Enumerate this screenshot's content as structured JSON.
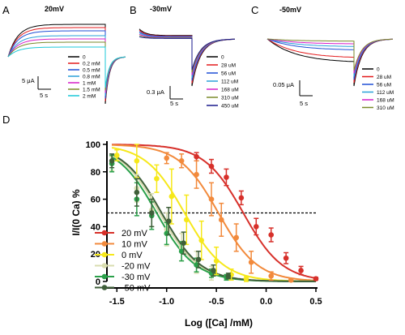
{
  "panels": [
    {
      "letter": "A",
      "title": "20mV",
      "scale": {
        "y_label": "5 μA",
        "x_label": "5 s"
      },
      "legend": [
        {
          "label": "0",
          "color": "#000000"
        },
        {
          "label": "0.2 mM",
          "color": "#e31a1c"
        },
        {
          "label": "0.5 mM",
          "color": "#1f4fd6"
        },
        {
          "label": "0.8 mM",
          "color": "#2aa0d8"
        },
        {
          "label": "1 mM",
          "color": "#d61fc8"
        },
        {
          "label": "1.5 mM",
          "color": "#7a8a2a"
        },
        {
          "label": "2 mM",
          "color": "#1cc8d8"
        }
      ]
    },
    {
      "letter": "B",
      "title": "-30mV",
      "scale": {
        "y_label": "0.3 μA",
        "x_label": "5 s"
      },
      "legend": [
        {
          "label": "0",
          "color": "#000000"
        },
        {
          "label": "28 uM",
          "color": "#e31a1c"
        },
        {
          "label": "56 uM",
          "color": "#1f4fd6"
        },
        {
          "label": "112 uM",
          "color": "#2aa0d8"
        },
        {
          "label": "168 uM",
          "color": "#d61fc8"
        },
        {
          "label": "310 uM",
          "color": "#7a8a2a"
        },
        {
          "label": "450 uM",
          "color": "#1a1a8c"
        }
      ]
    },
    {
      "letter": "C",
      "title": "-50mV",
      "scale": {
        "y_label": "0.05 μA",
        "x_label": "5 s"
      },
      "legend": [
        {
          "label": "0",
          "color": "#000000"
        },
        {
          "label": "28 uM",
          "color": "#e31a1c"
        },
        {
          "label": "56 uM",
          "color": "#1f4fd6"
        },
        {
          "label": "112 uM",
          "color": "#2aa0d8"
        },
        {
          "label": "168 uM",
          "color": "#d61fc8"
        },
        {
          "label": "310 uM",
          "color": "#7a8a2a"
        }
      ]
    }
  ],
  "panel_d_letter": "D",
  "chart_data": {
    "type": "scatter",
    "xlabel": "Log ([Ca] /mM)",
    "ylabel": "I/I(0 Ca) %",
    "xlim": [
      -1.6,
      0.5
    ],
    "ylim": [
      0,
      100
    ],
    "x_ticks": [
      "-1.5",
      "-1.0",
      "-0.5",
      "0.0",
      "0.5"
    ],
    "y_ticks": [
      "0",
      "20",
      "40",
      "60",
      "80",
      "100"
    ],
    "reference_line_y": 50,
    "legend_position": "left",
    "series": [
      {
        "name": "20 mV",
        "color": "#d7302a",
        "ic50_log": -0.23,
        "hill": 2.2,
        "x": [
          -0.7,
          -0.55,
          -0.4,
          -0.25,
          -0.1,
          0.05,
          0.2,
          0.35,
          0.5
        ],
        "y": [
          91,
          84,
          76,
          61,
          40,
          34,
          17,
          8,
          2
        ],
        "err": [
          3,
          5,
          6,
          5,
          6,
          5,
          4,
          3,
          1
        ]
      },
      {
        "name": "10 mV",
        "color": "#f28a3c",
        "ic50_log": -0.48,
        "hill": 2.2,
        "x": [
          -1.0,
          -0.85,
          -0.7,
          -0.55,
          -0.45,
          -0.3,
          -0.15,
          0.05,
          0.25
        ],
        "y": [
          90,
          88,
          78,
          60,
          45,
          32,
          14,
          4,
          1
        ],
        "err": [
          4,
          5,
          10,
          12,
          12,
          10,
          8,
          3,
          1
        ]
      },
      {
        "name": "0 mV",
        "color": "#f6e81a",
        "ic50_log": -0.82,
        "hill": 2.2,
        "x": [
          -1.5,
          -1.3,
          -1.1,
          -0.95,
          -0.8,
          -0.65,
          -0.5,
          -0.35,
          -0.2
        ],
        "y": [
          92,
          88,
          75,
          62,
          45,
          30,
          15,
          5,
          2
        ],
        "err": [
          4,
          12,
          10,
          20,
          18,
          14,
          10,
          4,
          2
        ]
      },
      {
        "name": "-20 mV",
        "color": "#d9ddb0",
        "ic50_log": -1.07,
        "hill": 2.2,
        "x": [
          -1.55,
          -1.3,
          -1.15,
          -1.0,
          -0.85,
          -0.7,
          -0.55,
          -0.4
        ],
        "y": [
          86,
          68,
          52,
          38,
          25,
          14,
          6,
          3
        ],
        "err": [
          5,
          10,
          12,
          12,
          10,
          8,
          5,
          2
        ]
      },
      {
        "name": "-30 mV",
        "color": "#2aa04a",
        "ic50_log": -1.1,
        "hill": 2.2,
        "x": [
          -1.55,
          -1.3,
          -1.15,
          -1.0,
          -0.85,
          -0.7,
          -0.55,
          -0.4
        ],
        "y": [
          86,
          60,
          48,
          35,
          22,
          12,
          6,
          3
        ],
        "err": [
          6,
          12,
          10,
          8,
          7,
          5,
          3,
          2
        ]
      },
      {
        "name": "-50 mV",
        "color": "#3f5f3a",
        "ic50_log": -1.05,
        "hill": 2.2,
        "x": [
          -1.55,
          -1.3,
          -1.15,
          -0.98,
          -0.83,
          -0.68,
          -0.53,
          -0.38
        ],
        "y": [
          88,
          65,
          50,
          44,
          28,
          16,
          8,
          4
        ],
        "err": [
          5,
          10,
          10,
          10,
          8,
          6,
          4,
          2
        ]
      }
    ]
  }
}
